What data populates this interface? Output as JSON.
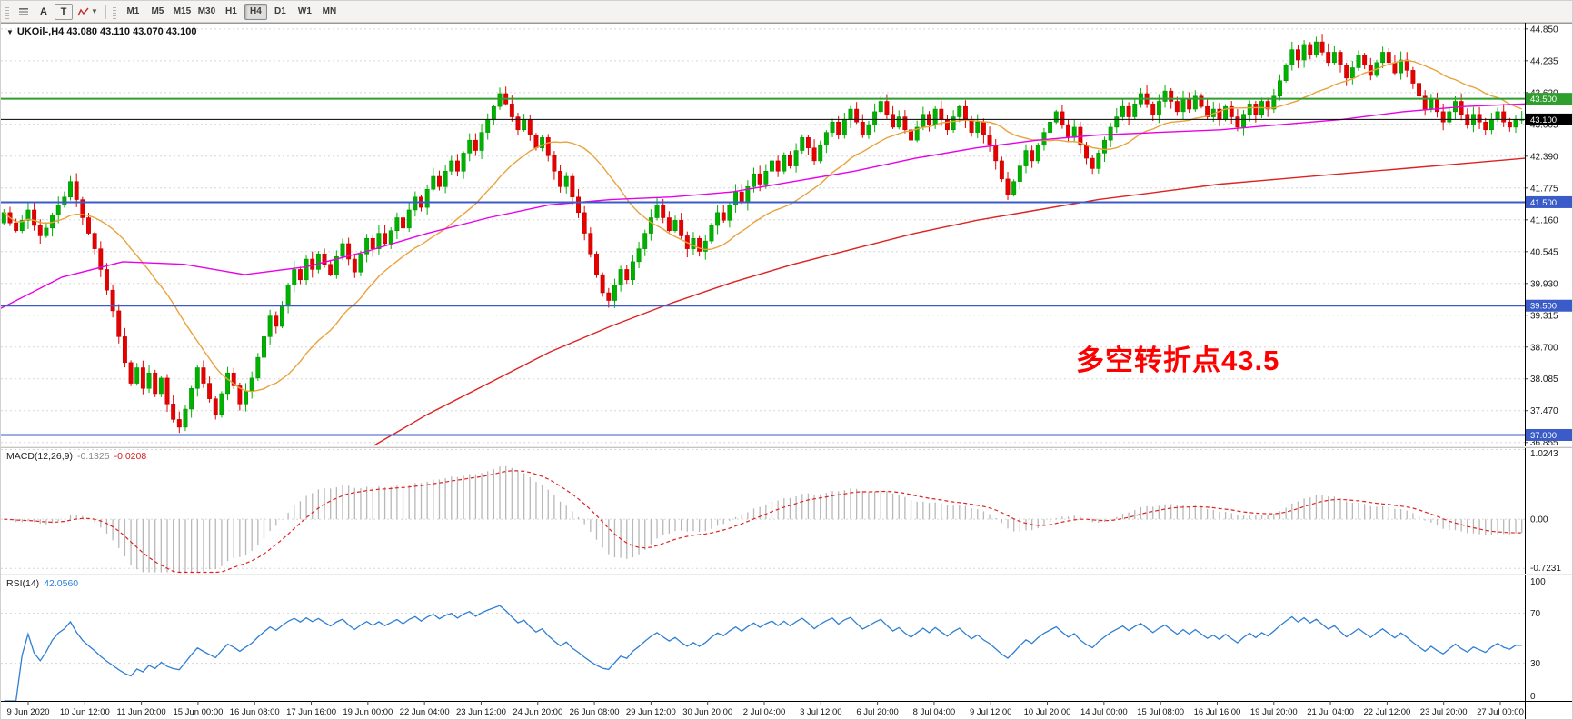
{
  "toolbar": {
    "letter_a": "A",
    "letter_t": "T",
    "timeframes": [
      "M1",
      "M5",
      "M15",
      "M30",
      "H1",
      "H4",
      "D1",
      "W1",
      "MN"
    ],
    "active_timeframe": "H4"
  },
  "chart": {
    "title": "UKOil-,H4 43.080 43.110 43.070 43.100",
    "symbol": "UKOil-",
    "period": "H4",
    "open": "43.080",
    "high": "43.110",
    "low": "43.070",
    "close": "43.100"
  },
  "annotation": {
    "text": "多空转折点43.5",
    "color": "#ff0000"
  },
  "macd_panel": {
    "label": "MACD(12,26,9)",
    "value_main": "-0.1325",
    "value_signal": "-0.0208",
    "axis_max": "1.0243",
    "axis_zero": "0.00",
    "axis_min": "-0.7231"
  },
  "rsi_panel": {
    "label": "RSI(14)",
    "value": "42.0560",
    "axis_top": "100",
    "axis_upper": "70",
    "axis_lower": "30",
    "axis_bottom": "0"
  },
  "colors": {
    "up": "#00b200",
    "up_edge": "#008a00",
    "down": "#e60000",
    "down_edge": "#b80000",
    "grid": "#d6d6d6",
    "axis_text": "#1a1a1a",
    "frame": "#000000",
    "hline_green": "#2f9e2f",
    "hline_blue": "#3a5bc8",
    "hline_black": "#000000",
    "ma_fast": "#e8a33d",
    "ma_mid": "#e800e8",
    "ma_slow": "#dd2222",
    "macd_hist": "#b8b8b8",
    "macd_signal": "#e02020",
    "rsi_line": "#2e7fd4"
  },
  "chart_data": {
    "type": "candlestick",
    "symbol": "UKOil-",
    "timeframe": "H4",
    "y_range": [
      36.78,
      44.97
    ],
    "price_axis_ticks": [
      44.85,
      44.235,
      43.62,
      43.005,
      42.39,
      41.775,
      41.16,
      40.545,
      39.93,
      39.315,
      38.7,
      38.085,
      37.47,
      36.855
    ],
    "hlines": [
      {
        "price": 43.5,
        "label": "43.500",
        "style": "solid",
        "color_key": "hline_green",
        "width": 2
      },
      {
        "price": 43.1,
        "label": "43.100",
        "style": "solid",
        "color_key": "hline_black",
        "width": 1
      },
      {
        "price": 41.5,
        "label": "41.500",
        "style": "solid",
        "color_key": "hline_blue",
        "width": 2
      },
      {
        "price": 39.5,
        "label": "39.500",
        "style": "solid",
        "color_key": "hline_blue",
        "width": 2
      },
      {
        "price": 37.0,
        "label": "37.000",
        "style": "solid",
        "color_key": "hline_blue",
        "width": 2
      }
    ],
    "open_first": 41.1,
    "closes": [
      41.3,
      41.1,
      40.95,
      41.15,
      41.35,
      41.05,
      40.85,
      41.0,
      41.25,
      41.45,
      41.6,
      41.9,
      41.55,
      41.2,
      40.9,
      40.6,
      40.2,
      39.8,
      39.4,
      38.9,
      38.4,
      38.0,
      38.3,
      37.9,
      38.2,
      37.8,
      38.1,
      37.6,
      37.3,
      37.15,
      37.5,
      37.9,
      38.3,
      38.0,
      37.7,
      37.4,
      37.8,
      38.2,
      37.95,
      37.6,
      37.85,
      38.1,
      38.5,
      38.9,
      39.3,
      39.1,
      39.5,
      39.9,
      40.2,
      40.0,
      40.4,
      40.2,
      40.5,
      40.3,
      40.1,
      40.45,
      40.7,
      40.4,
      40.15,
      40.5,
      40.8,
      40.6,
      40.9,
      40.7,
      40.95,
      41.2,
      41.0,
      41.35,
      41.6,
      41.4,
      41.75,
      42.0,
      41.8,
      42.1,
      42.3,
      42.1,
      42.45,
      42.7,
      42.5,
      42.85,
      43.1,
      43.35,
      43.6,
      43.4,
      43.15,
      42.9,
      43.1,
      42.8,
      42.55,
      42.75,
      42.4,
      42.1,
      41.8,
      42.0,
      41.6,
      41.3,
      40.9,
      40.5,
      40.1,
      39.75,
      39.6,
      39.9,
      40.2,
      40.0,
      40.35,
      40.6,
      40.9,
      41.2,
      41.45,
      41.2,
      40.95,
      41.15,
      40.85,
      40.6,
      40.8,
      40.55,
      40.75,
      41.05,
      41.3,
      41.15,
      41.45,
      41.7,
      41.5,
      41.8,
      42.05,
      41.85,
      42.1,
      42.3,
      42.1,
      42.4,
      42.2,
      42.5,
      42.75,
      42.55,
      42.3,
      42.6,
      42.85,
      43.05,
      42.8,
      43.1,
      43.3,
      43.05,
      42.8,
      43.0,
      43.25,
      43.45,
      43.2,
      42.95,
      43.15,
      42.9,
      42.7,
      42.95,
      43.2,
      43.0,
      43.3,
      43.1,
      42.9,
      43.15,
      43.35,
      43.1,
      42.85,
      43.05,
      42.8,
      42.6,
      42.3,
      41.95,
      41.65,
      41.9,
      42.2,
      42.5,
      42.3,
      42.6,
      42.85,
      43.05,
      43.25,
      43.0,
      42.75,
      42.95,
      42.6,
      42.35,
      42.15,
      42.45,
      42.7,
      42.95,
      43.15,
      43.35,
      43.15,
      43.4,
      43.6,
      43.4,
      43.2,
      43.45,
      43.65,
      43.45,
      43.25,
      43.5,
      43.3,
      43.55,
      43.35,
      43.15,
      43.3,
      43.1,
      43.35,
      43.15,
      42.95,
      43.2,
      43.4,
      43.2,
      43.45,
      43.3,
      43.55,
      43.85,
      44.15,
      44.45,
      44.25,
      44.55,
      44.35,
      44.6,
      44.4,
      44.2,
      44.4,
      44.15,
      43.9,
      44.1,
      44.35,
      44.15,
      43.95,
      44.2,
      44.4,
      44.2,
      44.0,
      44.25,
      44.05,
      43.8,
      43.55,
      43.3,
      43.5,
      43.25,
      43.05,
      43.25,
      43.45,
      43.2,
      43.0,
      43.2,
      43.05,
      42.9,
      43.1,
      43.25,
      43.05,
      42.95,
      43.1,
      43.1
    ],
    "time_labels": [
      "9 Jun 2020",
      "10 Jun 12:00",
      "11 Jun 20:00",
      "15 Jun 00:00",
      "16 Jun 08:00",
      "17 Jun 16:00",
      "19 Jun 00:00",
      "22 Jun 04:00",
      "23 Jun 12:00",
      "24 Jun 20:00",
      "26 Jun 08:00",
      "29 Jun 12:00",
      "30 Jun 20:00",
      "2 Jul 04:00",
      "3 Jul 12:00",
      "6 Jul 20:00",
      "8 Jul 04:00",
      "9 Jul 12:00",
      "10 Jul 20:00",
      "14 Jul 00:00",
      "15 Jul 08:00",
      "16 Jul 16:00",
      "19 Jul 20:00",
      "21 Jul 04:00",
      "22 Jul 12:00",
      "23 Jul 20:00",
      "27 Jul 00:00"
    ],
    "ma_fast_period": 21,
    "ma_mid_points": [
      [
        0,
        39.45
      ],
      [
        0.04,
        40.05
      ],
      [
        0.08,
        40.35
      ],
      [
        0.12,
        40.3
      ],
      [
        0.16,
        40.1
      ],
      [
        0.2,
        40.25
      ],
      [
        0.24,
        40.55
      ],
      [
        0.28,
        40.9
      ],
      [
        0.32,
        41.2
      ],
      [
        0.36,
        41.45
      ],
      [
        0.4,
        41.55
      ],
      [
        0.44,
        41.6
      ],
      [
        0.48,
        41.7
      ],
      [
        0.52,
        41.9
      ],
      [
        0.56,
        42.1
      ],
      [
        0.6,
        42.35
      ],
      [
        0.64,
        42.55
      ],
      [
        0.68,
        42.7
      ],
      [
        0.72,
        42.8
      ],
      [
        0.76,
        42.85
      ],
      [
        0.8,
        42.9
      ],
      [
        0.84,
        43.0
      ],
      [
        0.88,
        43.1
      ],
      [
        0.92,
        43.25
      ],
      [
        0.96,
        43.35
      ],
      [
        1,
        43.4
      ]
    ],
    "ma_slow_points": [
      [
        0.245,
        36.8
      ],
      [
        0.28,
        37.4
      ],
      [
        0.32,
        38.0
      ],
      [
        0.36,
        38.6
      ],
      [
        0.4,
        39.1
      ],
      [
        0.44,
        39.55
      ],
      [
        0.48,
        39.95
      ],
      [
        0.52,
        40.3
      ],
      [
        0.56,
        40.6
      ],
      [
        0.6,
        40.9
      ],
      [
        0.64,
        41.15
      ],
      [
        0.68,
        41.35
      ],
      [
        0.72,
        41.55
      ],
      [
        0.76,
        41.7
      ],
      [
        0.8,
        41.85
      ],
      [
        0.84,
        41.95
      ],
      [
        0.88,
        42.05
      ],
      [
        0.92,
        42.15
      ],
      [
        0.96,
        42.25
      ],
      [
        1,
        42.35
      ]
    ],
    "macd": {
      "fast": 12,
      "slow": 26,
      "signal": 9,
      "axis": [
        1.0243,
        0.0,
        -0.7231
      ]
    },
    "rsi": {
      "period": 14,
      "grid": [
        70,
        30
      ],
      "range": [
        0,
        100
      ]
    }
  }
}
